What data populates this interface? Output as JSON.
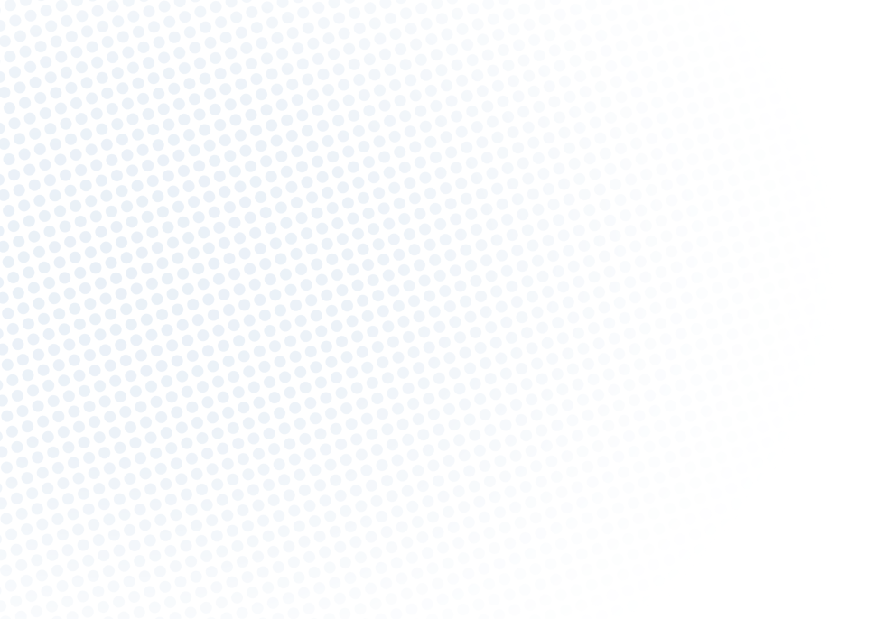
{
  "background": {
    "base_color": "#ffffff",
    "dot_color": "#e9f0f7",
    "pattern": "halftone-dots"
  }
}
